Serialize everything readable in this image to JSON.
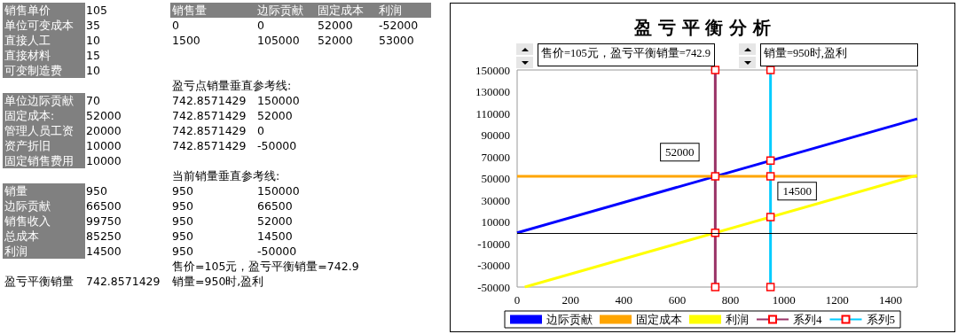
{
  "chart_data": [
    {
      "type": "other",
      "annotations": [
        "销售单价\t105\t销售量\t边际贡献\t固定成本\t利润",
        "单位可变成本\t35\t0\t0\t52000\t-52000",
        "直接人工\t10\t1500\t105000\t52000\t53000",
        "直接材料\t15",
        "可变制造费\t10",
        "\t\t盈亏点销量垂直参考线:",
        "单位边际贡献\t70\t742.8571429\t150000",
        "固定成本:\t52000\t742.8571429\t52000",
        "管理人员工资\t20000\t742.8571429\t0",
        "资产折旧\t10000\t742.8571429\t-50000",
        "固定销售费用\t10000",
        "\t\t当前销量垂直参考线:",
        "销量\t950\t950\t150000",
        "边际贡献\t66500\t950\t66500",
        "销售收入\t99750\t950\t52000",
        "总成本\t85250\t950\t14500",
        "利润\t14500\t950\t-50000",
        "\t\t售价=105元，盈亏平衡销量=742.9",
        "盈亏平衡销量\t742.8571429\t销量=950时,盈利"
      ]
    },
    {
      "type": "line",
      "title": "盈 亏 平 衡 分 析",
      "annotations": [
        "售价=105元，盈亏平衡销量=742.9",
        "销量=950时,盈利"
      ],
      "xlim": [
        0,
        1500
      ],
      "xticks": [
        0,
        200,
        400,
        600,
        800,
        1000,
        1200,
        1400
      ],
      "ylim": [
        -50000,
        150000
      ],
      "yticks": [
        -50000,
        -30000,
        -10000,
        10000,
        30000,
        50000,
        70000,
        90000,
        110000,
        130000,
        150000
      ],
      "grid": false,
      "legend": "bottom",
      "ref_lines": [
        {
          "axis": "y",
          "value": 0,
          "color": "#000000"
        }
      ],
      "series": [
        {
          "name": "边际贡献",
          "color": "#0000ff",
          "x": [
            0,
            1500
          ],
          "values": [
            0,
            105000
          ],
          "marker": "none"
        },
        {
          "name": "固定成本",
          "color": "#ffa500",
          "x": [
            0,
            1500
          ],
          "values": [
            52000,
            52000
          ],
          "marker": "none"
        },
        {
          "name": "利润",
          "color": "#ffff00",
          "x": [
            28.6,
            1500
          ],
          "values": [
            -50000,
            53000
          ],
          "marker": "none"
        },
        {
          "name": "系列4",
          "color": "#993366",
          "x": [
            742.8571429,
            742.8571429,
            742.8571429,
            742.8571429
          ],
          "values": [
            150000,
            52000,
            0,
            -50000
          ],
          "marker": "square",
          "value_labels": [
            null,
            "52000",
            null,
            null
          ]
        },
        {
          "name": "系列5",
          "color": "#00ccff",
          "x": [
            950,
            950,
            950,
            950,
            950
          ],
          "values": [
            150000,
            66500,
            52000,
            14500,
            -50000
          ],
          "marker": "square",
          "value_labels": [
            null,
            null,
            null,
            "14500",
            null
          ]
        }
      ]
    }
  ]
}
